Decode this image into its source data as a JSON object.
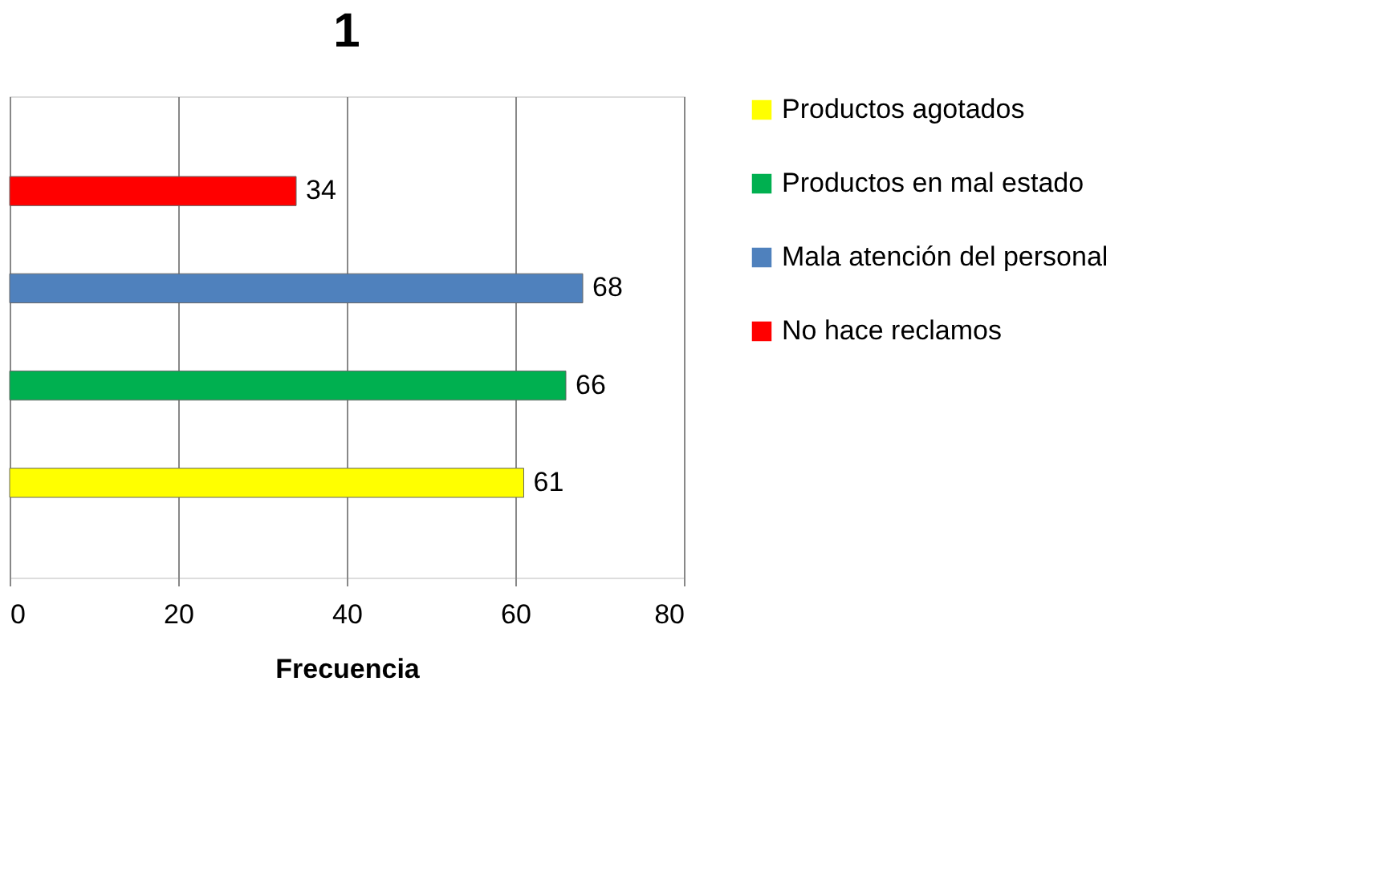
{
  "chart_data": {
    "type": "bar",
    "title": "1",
    "xlabel": "Frecuencia",
    "orientation": "horizontal",
    "categories": [
      null
    ],
    "series": [
      {
        "name": "Productos agotados",
        "color": "#ffff00",
        "values": [
          61
        ]
      },
      {
        "name": "Productos en mal estado",
        "color": "#00b050",
        "values": [
          66
        ]
      },
      {
        "name": "Mala atención del personal",
        "color": "#4f81bd",
        "values": [
          68
        ]
      },
      {
        "name": "No hace reclamos",
        "color": "#ff0000",
        "values": [
          34
        ]
      }
    ],
    "xlim": [
      0,
      80
    ],
    "xticks": [
      0,
      20,
      40,
      60,
      80
    ],
    "grid": "x",
    "legend": "right",
    "data_labels": true
  }
}
